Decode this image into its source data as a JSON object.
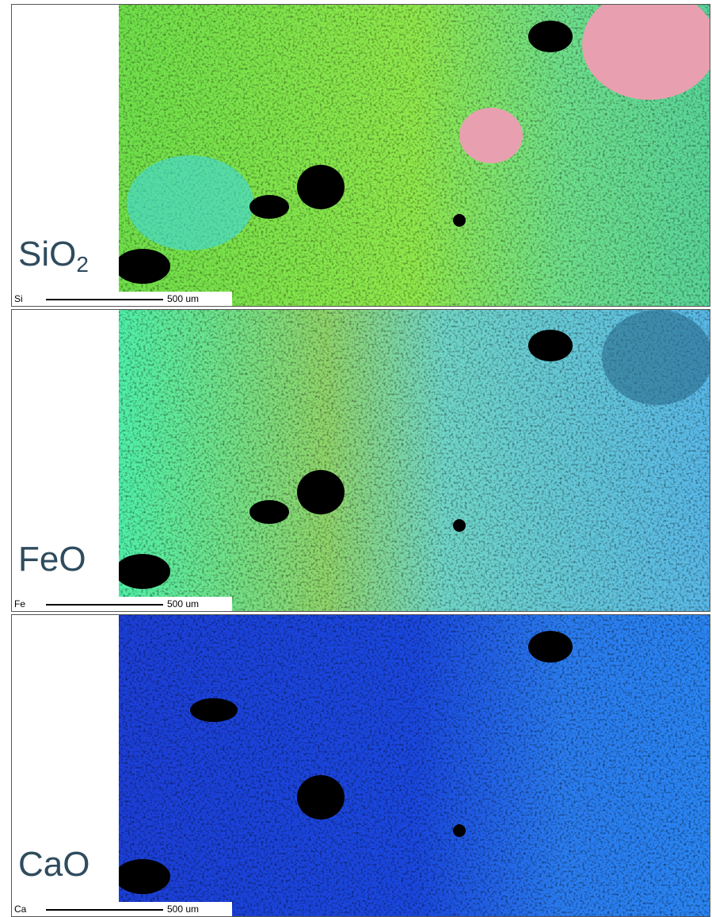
{
  "panels": [
    {
      "label": "SiO",
      "subscript": "2",
      "element": "Si",
      "scale": "500 um"
    },
    {
      "label": "FeO",
      "element": "Fe",
      "scale": "500 um"
    },
    {
      "label": "CaO",
      "element": "Ca",
      "scale": "500 um"
    }
  ]
}
